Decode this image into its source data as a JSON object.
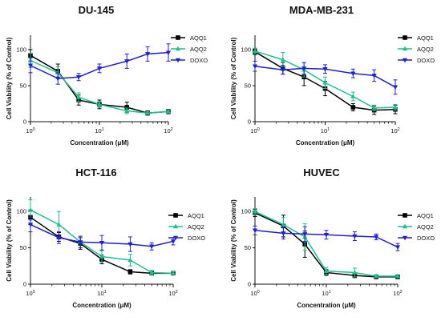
{
  "chart_data": [
    {
      "type": "line",
      "title": "DU-145",
      "xlabel": "Concentration (μM)",
      "ylabel": "Cell Viability (% of Control)",
      "xscale": "log",
      "xlim": [
        1,
        100
      ],
      "ylim": [
        0,
        120
      ],
      "xticks": [
        "10^0",
        "10^1",
        "10^2"
      ],
      "yticks": [
        0,
        50,
        100
      ],
      "legend_position": "top-right",
      "series": [
        {
          "name": "AQQ1",
          "color": "#000000",
          "marker": "square",
          "x": [
            1,
            2.5,
            5,
            10,
            25,
            50,
            100
          ],
          "y": [
            92,
            70,
            30,
            24,
            20,
            12,
            14
          ],
          "err": [
            8,
            10,
            7,
            6,
            7,
            3,
            3
          ]
        },
        {
          "name": "AQQ2",
          "color": "#1fbf8f",
          "marker": "triangle-up",
          "x": [
            1,
            2.5,
            5,
            10,
            25,
            50,
            100
          ],
          "y": [
            85,
            68,
            34,
            24,
            15,
            12,
            14
          ],
          "err": [
            10,
            8,
            6,
            4,
            4,
            2,
            2
          ]
        },
        {
          "name": "DOXO",
          "color": "#1f1fd6",
          "marker": "triangle-down",
          "x": [
            1,
            2.5,
            5,
            10,
            25,
            50,
            100
          ],
          "y": [
            78,
            60,
            62,
            74,
            84,
            94,
            96
          ],
          "err": [
            10,
            8,
            5,
            6,
            10,
            10,
            12
          ]
        }
      ]
    },
    {
      "type": "line",
      "title": "MDA-MB-231",
      "xlabel": "Concentration (μM)",
      "ylabel": "Cell Viability (% of Control)",
      "xscale": "log",
      "xlim": [
        1,
        100
      ],
      "ylim": [
        0,
        120
      ],
      "xticks": [
        "10^0",
        "10^1",
        "10^2"
      ],
      "yticks": [
        0,
        50,
        100
      ],
      "legend_position": "top-right",
      "series": [
        {
          "name": "AQQ1",
          "color": "#000000",
          "marker": "square",
          "x": [
            1,
            2.5,
            5,
            10,
            25,
            50,
            100
          ],
          "y": [
            97,
            74,
            62,
            46,
            20,
            16,
            17
          ],
          "err": [
            4,
            8,
            12,
            10,
            5,
            6,
            6
          ]
        },
        {
          "name": "AQQ2",
          "color": "#1fbf8f",
          "marker": "triangle-up",
          "x": [
            1,
            2.5,
            5,
            10,
            25,
            50,
            100
          ],
          "y": [
            98,
            86,
            72,
            54,
            35,
            19,
            20
          ],
          "err": [
            4,
            10,
            10,
            8,
            6,
            4,
            4
          ]
        },
        {
          "name": "DOXO",
          "color": "#1f1fd6",
          "marker": "triangle-down",
          "x": [
            1,
            2.5,
            5,
            10,
            25,
            50,
            100
          ],
          "y": [
            77,
            72,
            74,
            73,
            67,
            64,
            48
          ],
          "err": [
            7,
            6,
            8,
            6,
            6,
            8,
            10
          ]
        }
      ]
    },
    {
      "type": "line",
      "title": "HCT-116",
      "xlabel": "Concentration (μM)",
      "ylabel": "Cell Viability (% of Control)",
      "xscale": "log",
      "xlim": [
        1,
        100
      ],
      "ylim": [
        0,
        120
      ],
      "xticks": [
        "10^0",
        "10^1",
        "10^2"
      ],
      "yticks": [
        0,
        50,
        100
      ],
      "legend_position": "top-right",
      "series": [
        {
          "name": "AQQ1",
          "color": "#000000",
          "marker": "square",
          "x": [
            1,
            2.5,
            5,
            10,
            25,
            50,
            100
          ],
          "y": [
            92,
            65,
            56,
            34,
            17,
            15,
            15
          ],
          "err": [
            10,
            6,
            8,
            6,
            3,
            2,
            2
          ]
        },
        {
          "name": "AQQ2",
          "color": "#1fbf8f",
          "marker": "triangle-up",
          "x": [
            1,
            2.5,
            5,
            10,
            25,
            50,
            100
          ],
          "y": [
            102,
            82,
            58,
            38,
            33,
            16,
            15
          ],
          "err": [
            14,
            18,
            8,
            8,
            8,
            3,
            2
          ]
        },
        {
          "name": "DOXO",
          "color": "#1f1fd6",
          "marker": "triangle-down",
          "x": [
            1,
            2.5,
            5,
            10,
            25,
            50,
            100
          ],
          "y": [
            82,
            64,
            58,
            57,
            55,
            52,
            59
          ],
          "err": [
            10,
            8,
            8,
            10,
            10,
            5,
            5
          ]
        }
      ]
    },
    {
      "type": "line",
      "title": "HUVEC",
      "xlabel": "Concentration (μM)",
      "ylabel": "Cell Viability (% of Control)",
      "xscale": "log",
      "xlim": [
        1,
        100
      ],
      "ylim": [
        0,
        120
      ],
      "xticks": [
        "10^0",
        "10^1",
        "10^2"
      ],
      "yticks": [
        0,
        50,
        100
      ],
      "legend_position": "top-right",
      "series": [
        {
          "name": "AQQ1",
          "color": "#000000",
          "marker": "square",
          "x": [
            1,
            2.5,
            5,
            10,
            25,
            50,
            100
          ],
          "y": [
            98,
            80,
            55,
            16,
            12,
            10,
            10
          ],
          "err": [
            5,
            15,
            18,
            4,
            3,
            2,
            2
          ]
        },
        {
          "name": "AQQ2",
          "color": "#1fbf8f",
          "marker": "triangle-up",
          "x": [
            1,
            2.5,
            5,
            10,
            25,
            50,
            100
          ],
          "y": [
            100,
            82,
            65,
            18,
            16,
            11,
            11
          ],
          "err": [
            4,
            10,
            18,
            5,
            6,
            2,
            2
          ]
        },
        {
          "name": "DOXO",
          "color": "#1f1fd6",
          "marker": "triangle-down",
          "x": [
            1,
            2.5,
            5,
            10,
            25,
            50,
            100
          ],
          "y": [
            74,
            70,
            69,
            68,
            66,
            65,
            51
          ],
          "err": [
            6,
            8,
            10,
            6,
            6,
            4,
            5
          ]
        }
      ]
    }
  ]
}
